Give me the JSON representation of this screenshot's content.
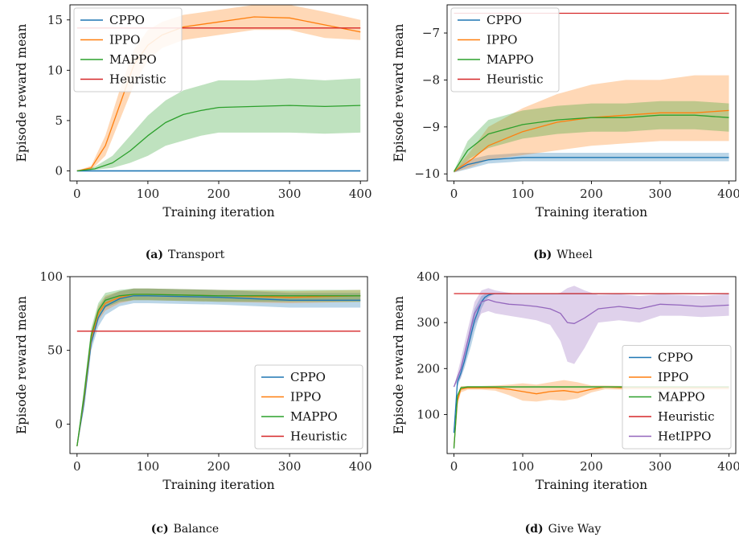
{
  "colors": {
    "CPPO": "#1f77b4",
    "IPPO": "#ff7f0e",
    "MAPPO": "#2ca02c",
    "Heuristic": "#d62728",
    "HetIPPO": "#9467bd"
  },
  "chart_data": [
    {
      "id": "a",
      "type": "line",
      "caption_tag": "(a)",
      "caption": "Transport",
      "xlabel": "Training iteration",
      "ylabel": "Episode reward mean",
      "xlim": [
        -10,
        410
      ],
      "ylim": [
        -1,
        16.5
      ],
      "xticks": [
        0,
        100,
        200,
        300,
        400
      ],
      "yticks": [
        0,
        5,
        10,
        15
      ],
      "legend_position": "top-left",
      "series": [
        {
          "name": "CPPO",
          "x": [
            0,
            50,
            100,
            200,
            300,
            400
          ],
          "y": [
            0,
            0,
            0,
            0,
            0,
            0
          ],
          "lower": [
            -0.1,
            -0.1,
            -0.1,
            -0.1,
            -0.1,
            -0.1
          ],
          "upper": [
            0.1,
            0.1,
            0.1,
            0.1,
            0.1,
            0.1
          ]
        },
        {
          "name": "IPPO",
          "x": [
            0,
            20,
            40,
            60,
            80,
            100,
            120,
            150,
            200,
            250,
            300,
            350,
            400
          ],
          "y": [
            0,
            0.3,
            2.5,
            6.5,
            10.5,
            12.5,
            13.5,
            14.3,
            14.8,
            15.3,
            15.2,
            14.5,
            13.8
          ],
          "lower": [
            0,
            0.1,
            1.5,
            5.0,
            8.5,
            11.0,
            12.2,
            13.0,
            13.5,
            14.0,
            14.0,
            13.2,
            13.0
          ],
          "upper": [
            0,
            0.5,
            3.5,
            8.0,
            12.0,
            14.0,
            14.8,
            15.5,
            16.0,
            16.5,
            16.5,
            15.8,
            15.0
          ]
        },
        {
          "name": "MAPPO",
          "x": [
            0,
            25,
            50,
            75,
            100,
            125,
            150,
            175,
            200,
            250,
            300,
            350,
            400
          ],
          "y": [
            0,
            0.2,
            0.8,
            2.0,
            3.5,
            4.8,
            5.6,
            6.0,
            6.3,
            6.4,
            6.5,
            6.4,
            6.5
          ],
          "lower": [
            0,
            0.1,
            0.3,
            0.8,
            1.5,
            2.5,
            3.0,
            3.5,
            3.8,
            3.8,
            3.8,
            3.7,
            3.8
          ],
          "upper": [
            0,
            0.4,
            1.5,
            3.5,
            5.5,
            7.0,
            8.0,
            8.5,
            9.0,
            9.0,
            9.2,
            9.0,
            9.2
          ]
        },
        {
          "name": "Heuristic",
          "x": [
            0,
            400
          ],
          "y": [
            14.2,
            14.2
          ]
        }
      ]
    },
    {
      "id": "b",
      "type": "line",
      "caption_tag": "(b)",
      "caption": "Wheel",
      "xlabel": "Training iteration",
      "ylabel": "Episode reward mean",
      "xlim": [
        -10,
        410
      ],
      "ylim": [
        -10.15,
        -6.4
      ],
      "xticks": [
        0,
        100,
        200,
        300,
        400
      ],
      "yticks": [
        -10,
        -9,
        -8,
        -7
      ],
      "legend_position": "top-left",
      "series": [
        {
          "name": "CPPO",
          "x": [
            0,
            20,
            50,
            100,
            200,
            300,
            400
          ],
          "y": [
            -9.95,
            -9.8,
            -9.7,
            -9.65,
            -9.65,
            -9.65,
            -9.65
          ],
          "lower": [
            -9.97,
            -9.9,
            -9.78,
            -9.73,
            -9.73,
            -9.73,
            -9.73
          ],
          "upper": [
            -9.93,
            -9.7,
            -9.6,
            -9.55,
            -9.55,
            -9.55,
            -9.55
          ]
        },
        {
          "name": "IPPO",
          "x": [
            0,
            25,
            50,
            100,
            150,
            200,
            250,
            300,
            350,
            400
          ],
          "y": [
            -9.95,
            -9.7,
            -9.4,
            -9.1,
            -8.9,
            -8.8,
            -8.75,
            -8.7,
            -8.7,
            -8.65
          ],
          "lower": [
            -9.97,
            -9.85,
            -9.7,
            -9.6,
            -9.5,
            -9.4,
            -9.35,
            -9.3,
            -9.3,
            -9.3
          ],
          "upper": [
            -9.93,
            -9.5,
            -9.0,
            -8.6,
            -8.3,
            -8.1,
            -8.0,
            -8.0,
            -7.9,
            -7.9
          ]
        },
        {
          "name": "MAPPO",
          "x": [
            0,
            20,
            50,
            100,
            150,
            200,
            250,
            300,
            350,
            400
          ],
          "y": [
            -9.95,
            -9.5,
            -9.15,
            -8.95,
            -8.85,
            -8.8,
            -8.8,
            -8.75,
            -8.75,
            -8.8
          ],
          "lower": [
            -9.97,
            -9.7,
            -9.45,
            -9.25,
            -9.15,
            -9.1,
            -9.1,
            -9.05,
            -9.05,
            -9.1
          ],
          "upper": [
            -9.93,
            -9.3,
            -8.85,
            -8.65,
            -8.55,
            -8.5,
            -8.5,
            -8.45,
            -8.45,
            -8.5
          ]
        },
        {
          "name": "Heuristic",
          "x": [
            0,
            400
          ],
          "y": [
            -6.58,
            -6.58
          ]
        }
      ]
    },
    {
      "id": "c",
      "type": "line",
      "caption_tag": "(c)",
      "caption": "Balance",
      "xlabel": "Training iteration",
      "ylabel": "Episode reward mean",
      "xlim": [
        -10,
        410
      ],
      "ylim": [
        -20,
        100
      ],
      "xticks": [
        0,
        100,
        200,
        300,
        400
      ],
      "yticks": [
        0,
        50,
        100
      ],
      "legend_position": "bottom-right",
      "series": [
        {
          "name": "CPPO",
          "x": [
            0,
            10,
            20,
            30,
            40,
            60,
            80,
            100,
            200,
            300,
            400
          ],
          "y": [
            -15,
            15,
            55,
            72,
            80,
            85,
            87,
            87,
            86,
            84,
            84
          ],
          "lower": [
            -15,
            10,
            50,
            66,
            74,
            80,
            82,
            82,
            81,
            79,
            79
          ],
          "upper": [
            -15,
            20,
            60,
            78,
            86,
            90,
            92,
            92,
            91,
            89,
            89
          ]
        },
        {
          "name": "IPPO",
          "x": [
            0,
            10,
            20,
            30,
            40,
            60,
            80,
            100,
            200,
            300,
            400
          ],
          "y": [
            -15,
            18,
            58,
            75,
            82,
            86,
            88,
            88,
            87,
            86,
            87
          ],
          "lower": [
            -15,
            13,
            53,
            70,
            77,
            82,
            84,
            84,
            83,
            82,
            83
          ],
          "upper": [
            -15,
            23,
            63,
            80,
            87,
            90,
            92,
            92,
            91,
            90,
            91
          ]
        },
        {
          "name": "MAPPO",
          "x": [
            0,
            10,
            20,
            30,
            40,
            60,
            80,
            100,
            200,
            300,
            400
          ],
          "y": [
            -15,
            20,
            60,
            77,
            84,
            87,
            88,
            88,
            87,
            87,
            87
          ],
          "lower": [
            -15,
            15,
            55,
            72,
            79,
            83,
            84,
            84,
            83,
            83,
            83
          ],
          "upper": [
            -15,
            25,
            65,
            82,
            89,
            91,
            92,
            92,
            91,
            91,
            91
          ]
        },
        {
          "name": "Heuristic",
          "x": [
            0,
            400
          ],
          "y": [
            63,
            63
          ]
        }
      ]
    },
    {
      "id": "d",
      "type": "line",
      "caption_tag": "(d)",
      "caption": "Give Way",
      "xlabel": "Training iteration",
      "ylabel": "Episode reward mean",
      "xlim": [
        -10,
        410
      ],
      "ylim": [
        15,
        400
      ],
      "xticks": [
        0,
        100,
        200,
        300,
        400
      ],
      "yticks": [
        100,
        200,
        300,
        400
      ],
      "legend_position": "bottom-right",
      "series": [
        {
          "name": "CPPO",
          "x": [
            0,
            5,
            10,
            15,
            20,
            25,
            30,
            35,
            40,
            45,
            50,
            55,
            60,
            400
          ],
          "y": [
            60,
            170,
            190,
            215,
            245,
            275,
            305,
            325,
            345,
            355,
            360,
            362,
            363,
            363
          ],
          "lower": [
            60,
            160,
            180,
            200,
            225,
            250,
            280,
            305,
            330,
            345,
            355,
            360,
            362,
            362
          ],
          "upper": [
            60,
            180,
            200,
            230,
            265,
            300,
            330,
            345,
            358,
            362,
            363,
            364,
            364,
            364
          ]
        },
        {
          "name": "IPPO",
          "x": [
            0,
            5,
            10,
            20,
            40,
            60,
            80,
            100,
            120,
            140,
            160,
            180,
            200,
            220,
            250,
            300,
            350,
            400
          ],
          "y": [
            28,
            130,
            155,
            158,
            158,
            158,
            155,
            150,
            145,
            150,
            152,
            148,
            155,
            160,
            158,
            158,
            158,
            158
          ],
          "lower": [
            28,
            120,
            148,
            154,
            154,
            152,
            142,
            130,
            128,
            132,
            130,
            135,
            148,
            155,
            154,
            154,
            154,
            154
          ],
          "upper": [
            28,
            140,
            162,
            162,
            162,
            163,
            165,
            168,
            165,
            170,
            175,
            170,
            163,
            163,
            162,
            162,
            162,
            162
          ]
        },
        {
          "name": "MAPPO",
          "x": [
            0,
            5,
            10,
            20,
            50,
            100,
            200,
            300,
            400
          ],
          "y": [
            26,
            140,
            158,
            160,
            160,
            160,
            160,
            160,
            160
          ],
          "lower": [
            26,
            135,
            156,
            158,
            158,
            158,
            158,
            158,
            158
          ],
          "upper": [
            26,
            145,
            160,
            162,
            162,
            162,
            162,
            162,
            162
          ]
        },
        {
          "name": "Heuristic",
          "x": [
            0,
            400
          ],
          "y": [
            363,
            363
          ]
        },
        {
          "name": "HetIPPO",
          "x": [
            0,
            10,
            20,
            30,
            40,
            50,
            60,
            80,
            100,
            120,
            140,
            155,
            165,
            175,
            190,
            210,
            240,
            270,
            300,
            330,
            360,
            400
          ],
          "y": [
            160,
            200,
            260,
            320,
            345,
            350,
            345,
            340,
            338,
            335,
            330,
            320,
            300,
            298,
            310,
            330,
            335,
            330,
            340,
            338,
            335,
            338
          ],
          "lower": [
            160,
            180,
            235,
            295,
            320,
            325,
            320,
            315,
            310,
            305,
            295,
            260,
            215,
            210,
            245,
            300,
            305,
            300,
            315,
            315,
            312,
            315
          ],
          "upper": [
            160,
            220,
            285,
            345,
            370,
            375,
            370,
            365,
            362,
            362,
            362,
            365,
            375,
            380,
            370,
            360,
            362,
            358,
            362,
            360,
            358,
            362
          ]
        }
      ]
    }
  ]
}
